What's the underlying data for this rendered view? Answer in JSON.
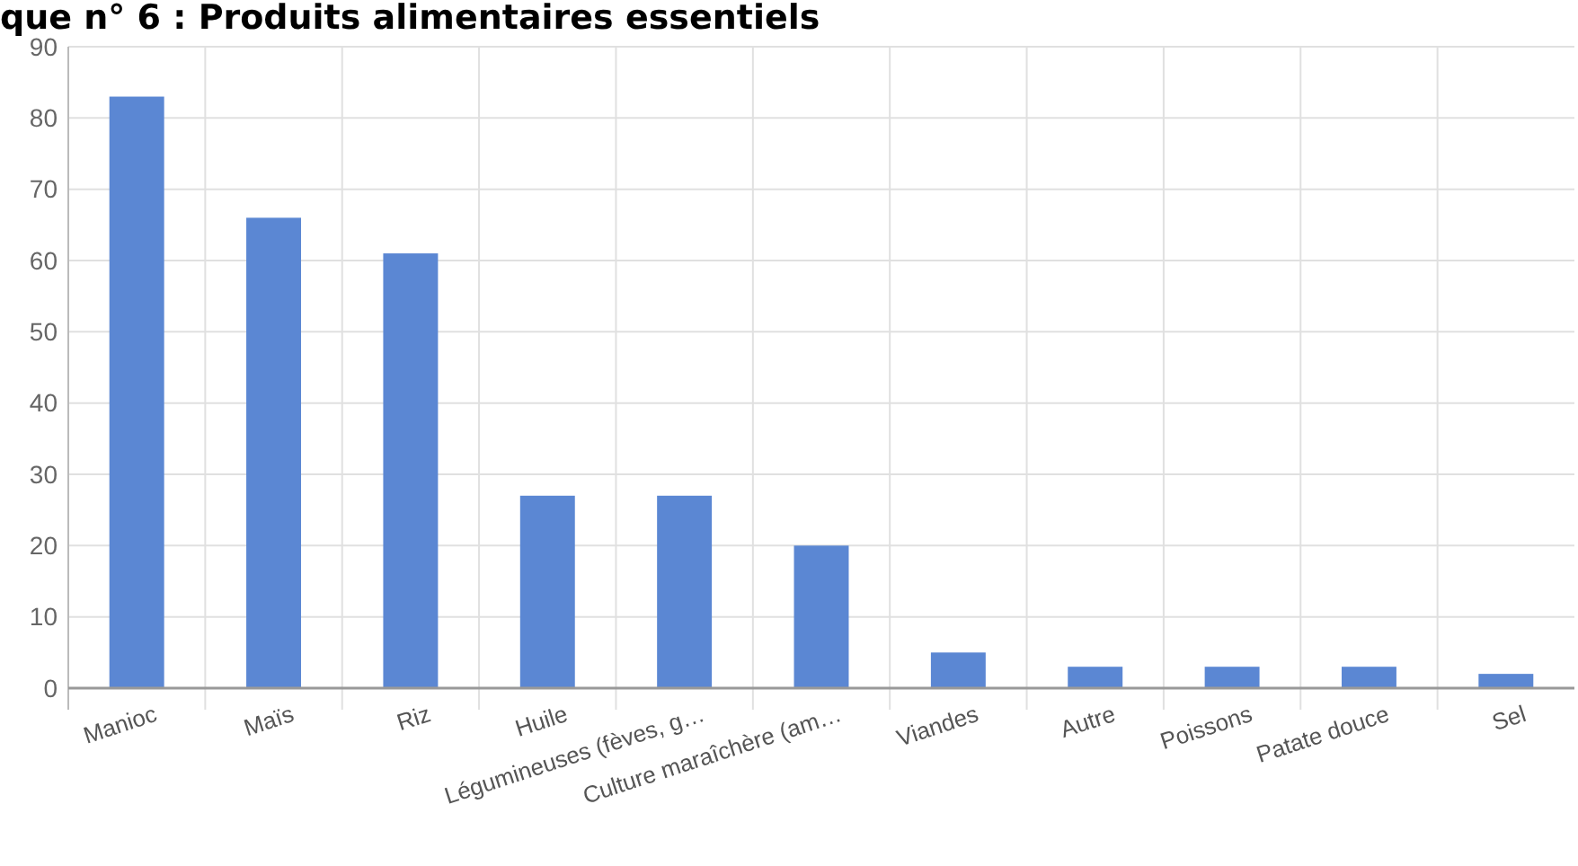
{
  "chart_data": {
    "type": "bar",
    "title": "que n° 6 : Produits alimentaires essentiels",
    "categories": [
      "Manioc",
      "Maïs",
      "Riz",
      "Huile",
      "Légumineuses (fèves, g…",
      "Culture maraîchère (am…",
      "Viandes",
      "Autre",
      "Poissons",
      "Patate douce",
      "Sel"
    ],
    "values": [
      83,
      66,
      61,
      27,
      27,
      20,
      5,
      3,
      3,
      3,
      2
    ],
    "color": "#5b87d3",
    "ylim": [
      0,
      90
    ],
    "yticks": [
      0,
      10,
      20,
      30,
      40,
      50,
      60,
      70,
      80,
      90
    ],
    "grid": true
  }
}
